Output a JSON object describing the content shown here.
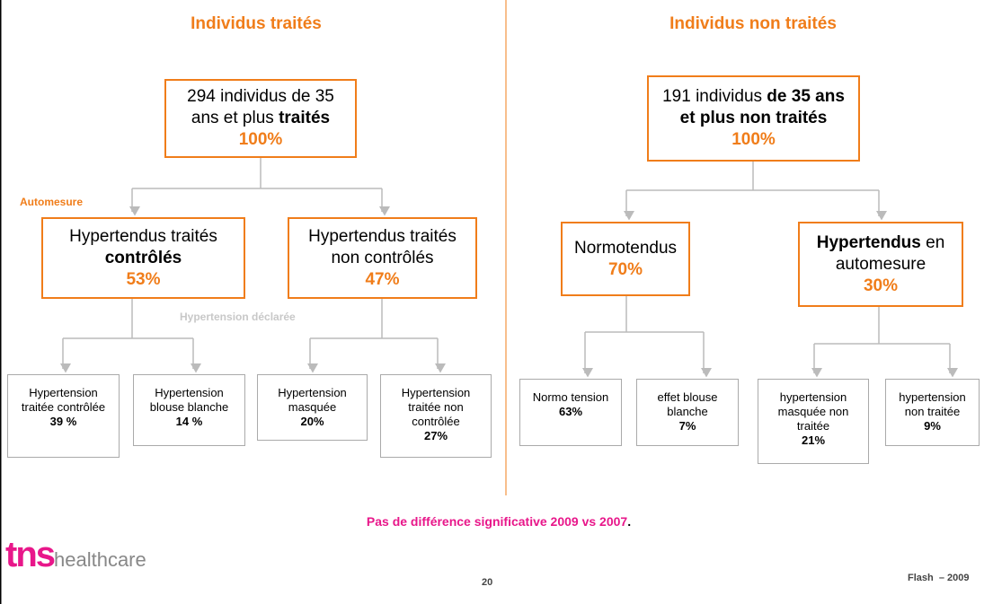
{
  "left": {
    "title": "Individus traités",
    "side_labels": [
      {
        "text": "Automesure",
        "tone": "orange"
      },
      {
        "text": "Hypertension déclarée",
        "tone": "gray"
      }
    ],
    "nodes": [
      {
        "runs": [
          {
            "text": "294 individus de 35 ans et plus ",
            "style": "normal"
          },
          {
            "text": "traités",
            "style": "bold"
          }
        ],
        "pct": "100%"
      },
      {
        "runs": [
          {
            "text": "Hypertendus traités ",
            "style": "normal"
          },
          {
            "text": "contrôlés",
            "style": "bold"
          }
        ],
        "pct": "53%"
      },
      {
        "runs": [
          {
            "text": "Hypertendus traités non contrôlés",
            "style": "normal"
          }
        ],
        "pct": "47%"
      }
    ],
    "leaves": [
      {
        "text": "Hypertension traitée contrôlée",
        "pct": "39 %"
      },
      {
        "text": "Hypertension blouse blanche",
        "pct": "14 %"
      },
      {
        "text": "Hypertension masquée",
        "pct": "20%"
      },
      {
        "text": "Hypertension traitée non contrôlée",
        "pct": "27%"
      }
    ]
  },
  "right": {
    "title": "Individus non  traités",
    "nodes": [
      {
        "runs": [
          {
            "text": "191 individus ",
            "style": "normal"
          },
          {
            "text": "de 35 ans et plus  non traités",
            "style": "bold"
          }
        ],
        "pct": "100%"
      },
      {
        "runs": [
          {
            "text": "Normotendus",
            "style": "normal"
          }
        ],
        "pct": "70%"
      },
      {
        "runs": [
          {
            "text": "Hypertendus",
            "style": "bold"
          },
          {
            "text": " en automesure",
            "style": "normal"
          }
        ],
        "pct": "30%"
      }
    ],
    "leaves": [
      {
        "text": "Normo tension",
        "pct": "63%"
      },
      {
        "text": "effet blouse blanche",
        "pct": "7%"
      },
      {
        "text": "hypertension masquée non traitée",
        "pct": "21%"
      },
      {
        "text": "hypertension non traitée",
        "pct": "9%"
      }
    ]
  },
  "footer": {
    "note": "Pas de différence significative 2009 vs 2007",
    "note_end": ".",
    "page": "20",
    "edition": "Flash  – 2009",
    "logo_main": "tns",
    "logo_sub": "healthcare"
  }
}
